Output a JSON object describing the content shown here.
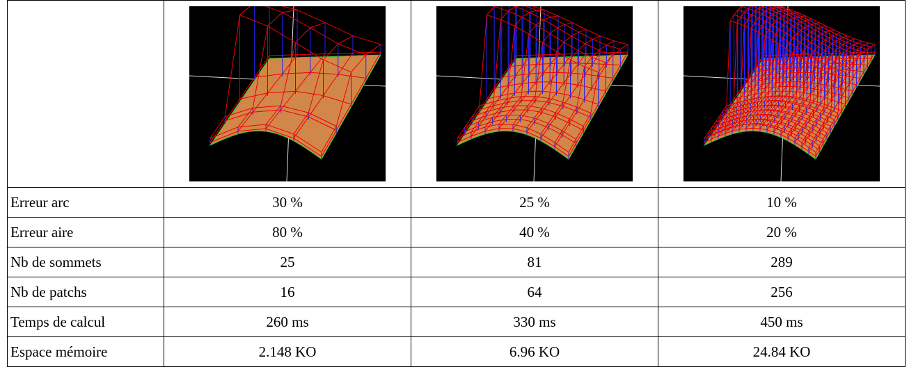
{
  "table": {
    "rows": [
      [
        "Erreur arc",
        "30 %",
        "25 %",
        "10 %"
      ],
      [
        "Erreur aire",
        "80 %",
        "40 %",
        "20 %"
      ],
      [
        "Nb de sommets",
        "25",
        "81",
        "289"
      ],
      [
        "Nb de patchs",
        "16",
        "64",
        "256"
      ],
      [
        "Temps de calcul",
        "260 ms",
        "330 ms",
        "450 ms"
      ],
      [
        "Espace mémoire",
        "2.148 KO",
        "6.96 KO",
        "24.84 KO"
      ]
    ]
  }
}
